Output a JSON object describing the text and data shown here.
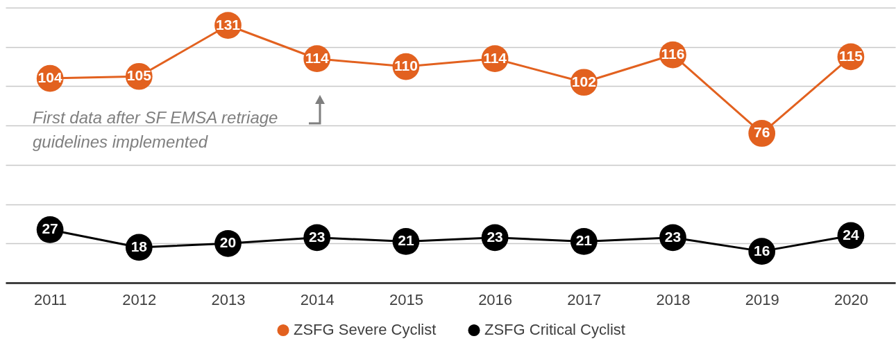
{
  "chart_data": {
    "type": "line",
    "categories": [
      "2011",
      "2012",
      "2013",
      "2014",
      "2015",
      "2016",
      "2017",
      "2018",
      "2019",
      "2020"
    ],
    "series": [
      {
        "name": "ZSFG Severe Cyclist",
        "color": "#e2611f",
        "values": [
          104,
          105,
          131,
          114,
          110,
          114,
          102,
          116,
          76,
          115
        ]
      },
      {
        "name": "ZSFG Critical Cyclist",
        "color": "#000000",
        "values": [
          27,
          18,
          20,
          23,
          21,
          23,
          21,
          23,
          16,
          24
        ]
      }
    ],
    "ylim": [
      0,
      140
    ],
    "yticks": [
      {
        "value": 0,
        "label": null
      },
      {
        "value": 20,
        "label": null
      },
      {
        "value": 40,
        "label": null
      },
      {
        "value": 60,
        "label": null
      },
      {
        "value": 80,
        "label": null
      },
      {
        "value": 100,
        "label": null
      },
      {
        "value": 120,
        "label": null
      },
      {
        "value": 140,
        "label": null
      }
    ],
    "grid": "y",
    "tick_labels": "x",
    "legend": "bottom",
    "marker": "circle",
    "line_style": "solid",
    "data_labels": true,
    "annotations": [
      "First data after SF EMSA retriage guidelines implemented"
    ]
  }
}
